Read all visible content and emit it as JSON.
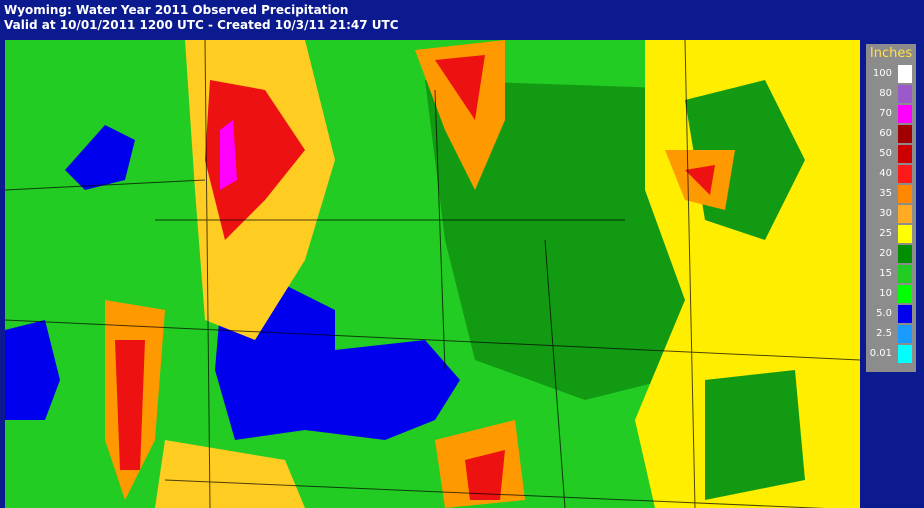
{
  "header": {
    "title": "Wyoming: Water Year 2011 Observed Precipitation",
    "subtitle": "Valid at 10/01/2011 1200 UTC - Created 10/3/11 21:47 UTC"
  },
  "legend": {
    "title": "Inches",
    "items": [
      {
        "label": "100",
        "color": "#ffffff"
      },
      {
        "label": "80",
        "color": "#9b59c9"
      },
      {
        "label": "70",
        "color": "#ff00ff"
      },
      {
        "label": "60",
        "color": "#a00000"
      },
      {
        "label": "50",
        "color": "#cc0000"
      },
      {
        "label": "40",
        "color": "#ff1a1a"
      },
      {
        "label": "35",
        "color": "#ff8800"
      },
      {
        "label": "30",
        "color": "#ffaa22"
      },
      {
        "label": "25",
        "color": "#ffff00"
      },
      {
        "label": "20",
        "color": "#008f00"
      },
      {
        "label": "15",
        "color": "#22cc22"
      },
      {
        "label": "10",
        "color": "#00ff00"
      },
      {
        "label": "5.0",
        "color": "#0000ee"
      },
      {
        "label": "2.5",
        "color": "#1a9bff"
      },
      {
        "label": "0.01",
        "color": "#00ffff"
      }
    ]
  }
}
